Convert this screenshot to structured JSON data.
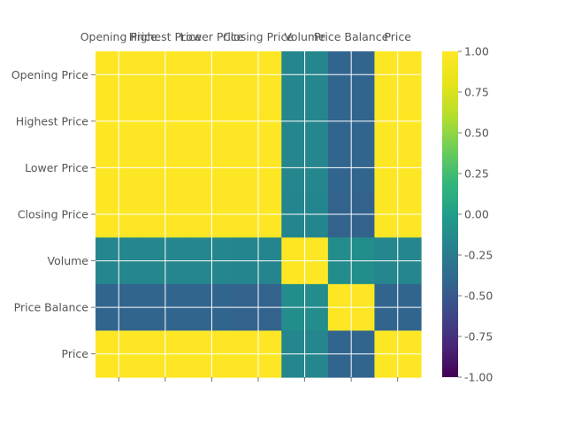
{
  "chart_data": {
    "type": "heatmap",
    "title": "",
    "xlabel": "",
    "ylabel": "",
    "x_tick_position": "top",
    "labels": [
      "Opening Price",
      "Highest Price",
      "Lower Price",
      "Closing Price",
      "Volume",
      "Price Balance",
      "Price"
    ],
    "matrix": [
      [
        1.0,
        1.0,
        1.0,
        1.0,
        -0.17,
        -0.42,
        1.0
      ],
      [
        1.0,
        1.0,
        1.0,
        1.0,
        -0.17,
        -0.42,
        1.0
      ],
      [
        1.0,
        1.0,
        1.0,
        1.0,
        -0.17,
        -0.42,
        1.0
      ],
      [
        1.0,
        1.0,
        1.0,
        1.0,
        -0.18,
        -0.43,
        1.0
      ],
      [
        -0.17,
        -0.17,
        -0.17,
        -0.18,
        1.0,
        -0.12,
        -0.17
      ],
      [
        -0.42,
        -0.42,
        -0.42,
        -0.43,
        -0.12,
        1.0,
        -0.42
      ],
      [
        1.0,
        1.0,
        1.0,
        1.0,
        -0.17,
        -0.42,
        1.0
      ]
    ],
    "colormap": "viridis",
    "vmin": -1.0,
    "vmax": 1.0,
    "colorbar_ticks": [
      "-1.00",
      "-0.75",
      "-0.50",
      "-0.25",
      "0.00",
      "0.25",
      "0.50",
      "0.75",
      "1.00"
    ],
    "grid": true
  }
}
